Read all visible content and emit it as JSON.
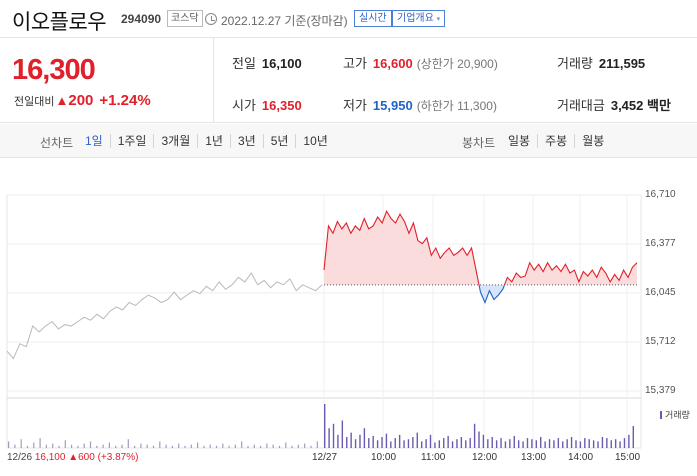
{
  "header": {
    "name": "이오플로우",
    "code": "294090",
    "market": "코스닥",
    "date": "2022.12.27 기준(장마감)",
    "realtime": "실시간",
    "company": "기업개요",
    "caret": "▾"
  },
  "summary": {
    "price": "16,300",
    "change_label": "전일대비",
    "change_arrow": "▲",
    "change": "200",
    "change_pct": "+1.24%",
    "prev_label": "전일",
    "prev": "16,100",
    "high_label": "고가",
    "high": "16,600",
    "upper_limit": "(상한가 20,900)",
    "volume_label": "거래량",
    "volume": "211,595",
    "open_label": "시가",
    "open": "16,350",
    "low_label": "저가",
    "low": "15,950",
    "lower_limit": "(하한가 11,300)",
    "amount_label": "거래대금",
    "amount": "3,452 백만"
  },
  "controls": {
    "line_title": "선차트",
    "periods": [
      "1일",
      "1주일",
      "3개월",
      "1년",
      "3년",
      "5년",
      "10년"
    ],
    "active_period": "1일",
    "candle_title": "봉차트",
    "candles": [
      "일봉",
      "주봉",
      "월봉"
    ]
  },
  "colors": {
    "up": "#e0202b",
    "down": "#1e63c8",
    "prev": "#b9b9b9",
    "volume": "#6c5ab0"
  },
  "chart_data": {
    "type": "line",
    "yticks": [
      "16,710",
      "16,377",
      "16,045",
      "15,712",
      "15,379"
    ],
    "ytick_values": [
      16710,
      16377,
      16045,
      15712,
      15379
    ],
    "ylim": [
      15379,
      16710
    ],
    "base_price": 16100,
    "xticks": [
      "12/27",
      "10:00",
      "11:00",
      "12:00",
      "13:00",
      "14:00",
      "15:00"
    ],
    "legend": "거래량",
    "prev_day": {
      "date": "12/26",
      "close": "16,100",
      "arrow": "▲",
      "change": "600",
      "change_pct": "(+3.87%)",
      "values": [
        15650,
        15600,
        15700,
        15680,
        15820,
        15780,
        15820,
        15850,
        15800,
        15830,
        15820,
        15850,
        15880,
        15860,
        15900,
        15870,
        15920,
        15950,
        15930,
        15980,
        15960,
        16000,
        16030,
        16010,
        15980,
        16000,
        16050,
        16000,
        16030,
        16060,
        16040,
        16090,
        16060,
        16120,
        16070,
        16100,
        16150,
        16120,
        16180,
        16100,
        16130,
        16080,
        16120,
        16100,
        16140,
        16060,
        16100,
        16080,
        16060,
        16100
      ]
    },
    "today": {
      "date": "12/27",
      "values": [
        16200,
        16500,
        16450,
        16530,
        16480,
        16520,
        16450,
        16500,
        16470,
        16550,
        16480,
        16500,
        16560,
        16520,
        16600,
        16550,
        16520,
        16580,
        16530,
        16450,
        16520,
        16400,
        16380,
        16420,
        16300,
        16350,
        16280,
        16320,
        16350,
        16300,
        16320,
        16350,
        16300,
        16350,
        16200,
        16050,
        15980,
        16060,
        16000,
        16030,
        16070,
        16150,
        16120,
        16180,
        16150,
        16160,
        16250,
        16200,
        16240,
        16190,
        16250,
        16200,
        16230,
        16190,
        16240,
        16180,
        16200,
        16120,
        16190,
        16160,
        16200,
        16150,
        16220,
        16180,
        16120,
        16170,
        16130,
        16200,
        16150,
        16220,
        16250
      ]
    },
    "volume": {
      "prev_day": [
        6,
        3,
        8,
        2,
        5,
        9,
        3,
        4,
        2,
        7,
        3,
        2,
        4,
        6,
        2,
        3,
        5,
        2,
        3,
        8,
        2,
        4,
        3,
        2,
        6,
        3,
        2,
        4,
        2,
        3,
        5,
        2,
        3,
        2,
        4,
        2,
        3,
        6,
        2,
        3,
        2,
        4,
        3,
        2,
        5,
        2,
        3,
        4,
        2,
        6
      ],
      "today": [
        40,
        18,
        22,
        12,
        25,
        10,
        14,
        8,
        12,
        18,
        9,
        11,
        7,
        10,
        13,
        6,
        9,
        12,
        7,
        8,
        10,
        14,
        6,
        8,
        12,
        5,
        7,
        9,
        11,
        6,
        8,
        10,
        7,
        9,
        22,
        15,
        12,
        8,
        10,
        7,
        9,
        6,
        8,
        11,
        7,
        6,
        9,
        8,
        7,
        10,
        6,
        8,
        7,
        9,
        6,
        8,
        10,
        7,
        6,
        9,
        8,
        7,
        6,
        10,
        9,
        7,
        8,
        6,
        9,
        12,
        20
      ]
    }
  }
}
